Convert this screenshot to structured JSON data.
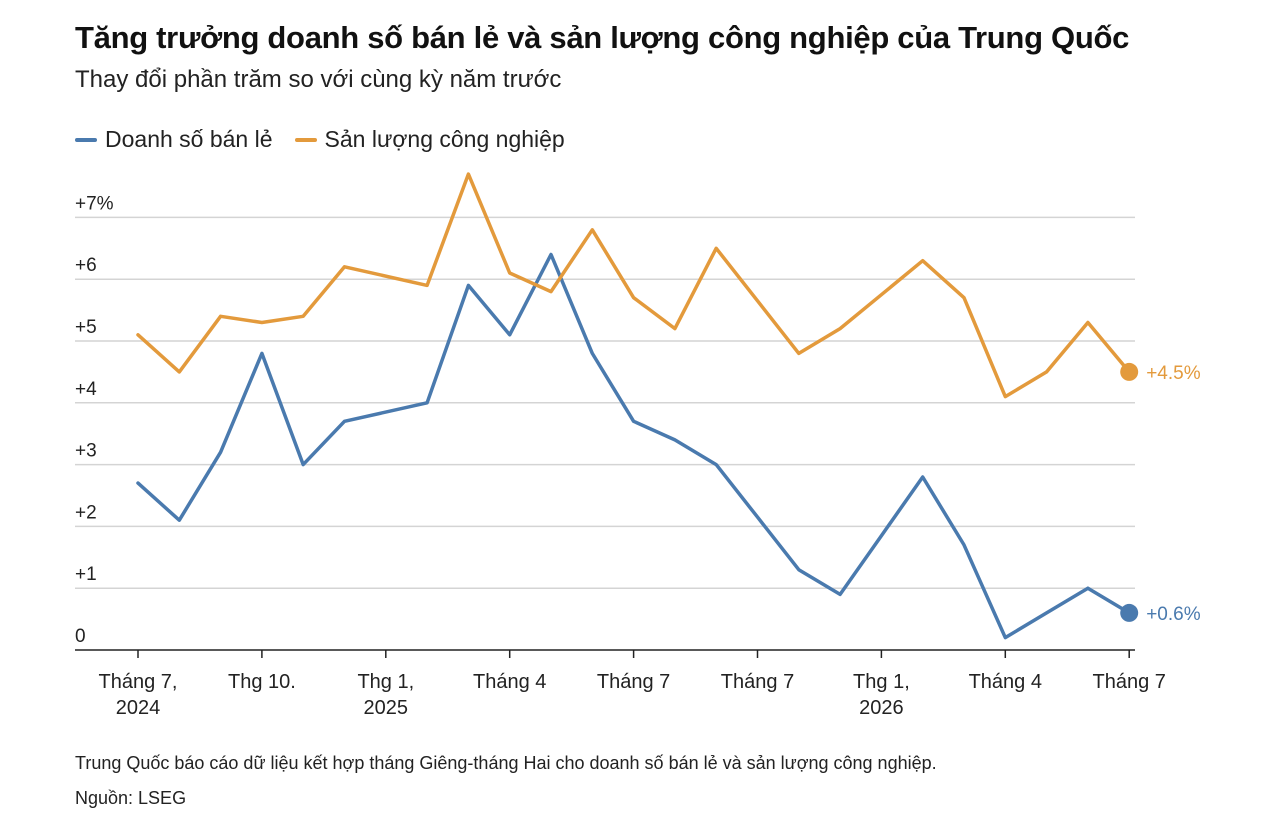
{
  "title": "Tăng trưởng doanh số bán lẻ và sản lượng công nghiệp của Trung Quốc",
  "subtitle": "Thay đổi phần trăm so với cùng kỳ năm trước",
  "footnote": "Trung Quốc báo cáo dữ liệu kết hợp tháng Giêng-tháng Hai cho doanh số bán lẻ và sản lượng công nghiệp.",
  "source": "Nguồn: LSEG",
  "colors": {
    "retail": "#4a7aae",
    "industrial": "#e39a3c",
    "grid": "#d4d4d4",
    "axis": "#222222"
  },
  "chart_data": {
    "type": "line",
    "ylim": [
      0,
      7.7
    ],
    "y_ticks": [
      {
        "value": 0,
        "label": "0"
      },
      {
        "value": 1,
        "label": "+1"
      },
      {
        "value": 2,
        "label": "+2"
      },
      {
        "value": 3,
        "label": "+3"
      },
      {
        "value": 4,
        "label": "+4"
      },
      {
        "value": 5,
        "label": "+5"
      },
      {
        "value": 6,
        "label": "+6"
      },
      {
        "value": 7,
        "label": "+7%"
      }
    ],
    "x_ticks": [
      {
        "index": 0,
        "lines": [
          "Tháng 7,",
          "2024"
        ]
      },
      {
        "index": 3,
        "lines": [
          "Thg 10."
        ]
      },
      {
        "index": 6,
        "lines": [
          "Thg 1,",
          "2025"
        ]
      },
      {
        "index": 9,
        "lines": [
          "Tháng 4"
        ]
      },
      {
        "index": 12,
        "lines": [
          "Tháng 7"
        ]
      },
      {
        "index": 15,
        "lines": [
          "Tháng 7"
        ]
      },
      {
        "index": 18,
        "lines": [
          "Thg 1,",
          "2026"
        ]
      },
      {
        "index": 21,
        "lines": [
          "Tháng 4"
        ]
      },
      {
        "index": 24,
        "lines": [
          "Tháng 7"
        ]
      }
    ],
    "grid": true,
    "legend": "top-left",
    "series": [
      {
        "key": "retail",
        "name": "Doanh số bán lẻ",
        "values": [
          2.7,
          2.1,
          3.2,
          4.8,
          3.0,
          3.7,
          null,
          4.0,
          5.9,
          5.1,
          6.4,
          4.8,
          3.7,
          3.4,
          3.0,
          2.15,
          1.3,
          0.9,
          1.85,
          2.8,
          1.7,
          0.2,
          0.6,
          1.0,
          0.6
        ],
        "end_label": "+0.6%"
      },
      {
        "key": "industrial",
        "name": "Sản lượng công nghiệp",
        "values": [
          5.1,
          4.5,
          5.4,
          5.3,
          5.4,
          6.2,
          null,
          5.9,
          7.7,
          6.1,
          5.8,
          6.8,
          5.7,
          5.2,
          6.5,
          5.65,
          4.8,
          5.2,
          5.75,
          6.3,
          5.7,
          4.1,
          4.5,
          5.3,
          4.5
        ],
        "end_label": "+4.5%"
      }
    ]
  }
}
